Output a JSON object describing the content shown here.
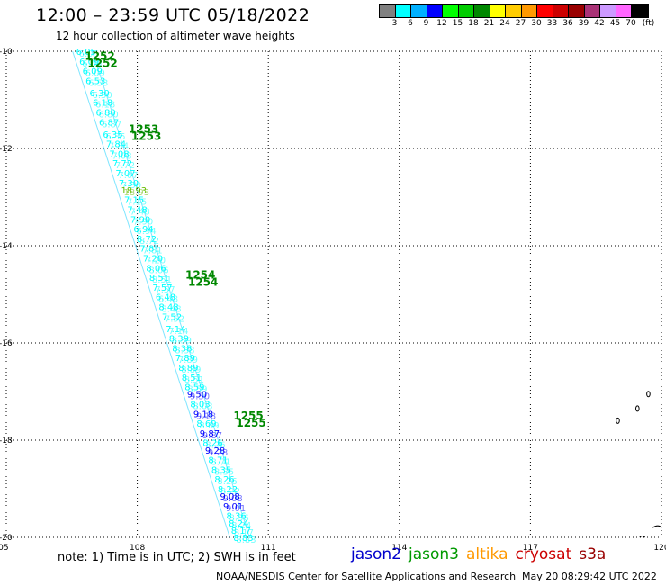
{
  "header": {
    "title": "12:00 – 23:59 UTC 05/18/2022",
    "subtitle": "12 hour collection of altimeter wave heights"
  },
  "legend": {
    "unit": "(ft)",
    "bins": [
      {
        "label": "3",
        "color": "#808080"
      },
      {
        "label": "6",
        "color": "#00ffff"
      },
      {
        "label": "9",
        "color": "#00b0ff"
      },
      {
        "label": "12",
        "color": "#0000ff"
      },
      {
        "label": "15",
        "color": "#00ff00"
      },
      {
        "label": "18",
        "color": "#00cc00"
      },
      {
        "label": "21",
        "color": "#008800"
      },
      {
        "label": "24",
        "color": "#ffff00"
      },
      {
        "label": "27",
        "color": "#ffcc00"
      },
      {
        "label": "30",
        "color": "#ff9900"
      },
      {
        "label": "33",
        "color": "#ff0000"
      },
      {
        "label": "36",
        "color": "#cc0000"
      },
      {
        "label": "39",
        "color": "#990000"
      },
      {
        "label": "42",
        "color": "#aa3377"
      },
      {
        "label": "45",
        "color": "#cc99ff"
      },
      {
        "label": "70",
        "color": "#ff66ff"
      },
      {
        "label": "",
        "color": "#000000"
      }
    ]
  },
  "map": {
    "lon_labels": [
      "105",
      "108",
      "111",
      "114",
      "117",
      "120"
    ],
    "lat_labels": [
      "-10",
      "-12",
      "-14",
      "-16",
      "-18",
      "-20"
    ],
    "lon_range": [
      105,
      120
    ],
    "lat_range": [
      -10,
      -20
    ]
  },
  "track": {
    "passes": [
      {
        "label": "1252",
        "lon": 106.8,
        "lat": -10.1
      },
      {
        "label": "1253",
        "lon": 107.8,
        "lat": -11.6
      },
      {
        "label": "1254",
        "lon": 109.1,
        "lat": -14.6
      },
      {
        "label": "1255",
        "lon": 110.2,
        "lat": -17.5
      }
    ],
    "readings": [
      {
        "v": "6.05",
        "lat": -10.0,
        "c": "#00ffff"
      },
      {
        "v": "6.09",
        "lat": -10.2,
        "c": "#00ffff"
      },
      {
        "v": "6.09",
        "lat": -10.4,
        "c": "#00ffff"
      },
      {
        "v": "6.53",
        "lat": -10.6,
        "c": "#00ffff"
      },
      {
        "v": "6.30",
        "lat": -10.85,
        "c": "#00ffff"
      },
      {
        "v": "6.18",
        "lat": -11.05,
        "c": "#00ffff"
      },
      {
        "v": "6.80",
        "lat": -11.25,
        "c": "#00ffff"
      },
      {
        "v": "6.87",
        "lat": -11.45,
        "c": "#00ffff"
      },
      {
        "v": "6.35",
        "lat": -11.7,
        "c": "#00ffff"
      },
      {
        "v": "7.84",
        "lat": -11.9,
        "c": "#00ffff"
      },
      {
        "v": "7.08",
        "lat": -12.1,
        "c": "#00ffff"
      },
      {
        "v": "7.72",
        "lat": -12.3,
        "c": "#00ffff"
      },
      {
        "v": "7.07",
        "lat": -12.5,
        "c": "#00ffff"
      },
      {
        "v": "7.30",
        "lat": -12.7,
        "c": "#00ffff"
      },
      {
        "v": "18.93",
        "lat": -12.85,
        "c": "#66bb00"
      },
      {
        "v": "7.15",
        "lat": -13.05,
        "c": "#00ffff"
      },
      {
        "v": "7.48",
        "lat": -13.25,
        "c": "#00ffff"
      },
      {
        "v": "7.90",
        "lat": -13.45,
        "c": "#00ffff"
      },
      {
        "v": "6.94",
        "lat": -13.65,
        "c": "#00ffff"
      },
      {
        "v": "8.72",
        "lat": -13.85,
        "c": "#00ffff"
      },
      {
        "v": "7.81",
        "lat": -14.05,
        "c": "#00ffff"
      },
      {
        "v": "7.20",
        "lat": -14.25,
        "c": "#00ffff"
      },
      {
        "v": "8.06",
        "lat": -14.45,
        "c": "#00ffff"
      },
      {
        "v": "8.51",
        "lat": -14.65,
        "c": "#00ffff"
      },
      {
        "v": "7.57",
        "lat": -14.85,
        "c": "#00ffff"
      },
      {
        "v": "6.48",
        "lat": -15.05,
        "c": "#00ffff"
      },
      {
        "v": "8.48",
        "lat": -15.25,
        "c": "#00ffff"
      },
      {
        "v": "7.52",
        "lat": -15.45,
        "c": "#00ffff"
      },
      {
        "v": "7.14",
        "lat": -15.7,
        "c": "#00ffff"
      },
      {
        "v": "8.39",
        "lat": -15.9,
        "c": "#00ffff"
      },
      {
        "v": "8.38",
        "lat": -16.1,
        "c": "#00ffff"
      },
      {
        "v": "7.89",
        "lat": -16.3,
        "c": "#00ffff"
      },
      {
        "v": "8.89",
        "lat": -16.5,
        "c": "#00ffff"
      },
      {
        "v": "8.51",
        "lat": -16.7,
        "c": "#00ffff"
      },
      {
        "v": "8.59",
        "lat": -16.9,
        "c": "#00ffff"
      },
      {
        "v": "9.50",
        "lat": -17.05,
        "c": "#0000ff"
      },
      {
        "v": "8.03",
        "lat": -17.25,
        "c": "#00ffff"
      },
      {
        "v": "9.18",
        "lat": -17.45,
        "c": "#0000ff"
      },
      {
        "v": "8.69",
        "lat": -17.65,
        "c": "#00ffff"
      },
      {
        "v": "9.87",
        "lat": -17.85,
        "c": "#0000ff"
      },
      {
        "v": "8.26",
        "lat": -18.05,
        "c": "#00ffff"
      },
      {
        "v": "9.28",
        "lat": -18.2,
        "c": "#0000ff"
      },
      {
        "v": "8.71",
        "lat": -18.4,
        "c": "#00ffff"
      },
      {
        "v": "8.35",
        "lat": -18.6,
        "c": "#00ffff"
      },
      {
        "v": "8.26",
        "lat": -18.8,
        "c": "#00ffff"
      },
      {
        "v": "8.22",
        "lat": -19.0,
        "c": "#00ffff"
      },
      {
        "v": "9.08",
        "lat": -19.15,
        "c": "#0000ff"
      },
      {
        "v": "9.01",
        "lat": -19.35,
        "c": "#0000ff"
      },
      {
        "v": "8.36",
        "lat": -19.55,
        "c": "#00ffff"
      },
      {
        "v": "8.24",
        "lat": -19.7,
        "c": "#00ffff"
      },
      {
        "v": "8.17",
        "lat": -19.85,
        "c": "#00ffff"
      },
      {
        "v": "8.83",
        "lat": -20.0,
        "c": "#00ffff"
      }
    ]
  },
  "footer": {
    "note": "note:  1) Time is in UTC;  2) SWH is in feet",
    "satellites": [
      {
        "name": "jason2",
        "color": "#0000cc"
      },
      {
        "name": "jason3",
        "color": "#009900"
      },
      {
        "name": "altika",
        "color": "#ff9900"
      },
      {
        "name": "cryosat",
        "color": "#cc0000"
      },
      {
        "name": "s3a",
        "color": "#990000"
      }
    ],
    "credit": "NOAA/NESDIS Center for Satellite Applications and Research",
    "timestamp": "May 20 08:29:42 UTC 2022"
  }
}
